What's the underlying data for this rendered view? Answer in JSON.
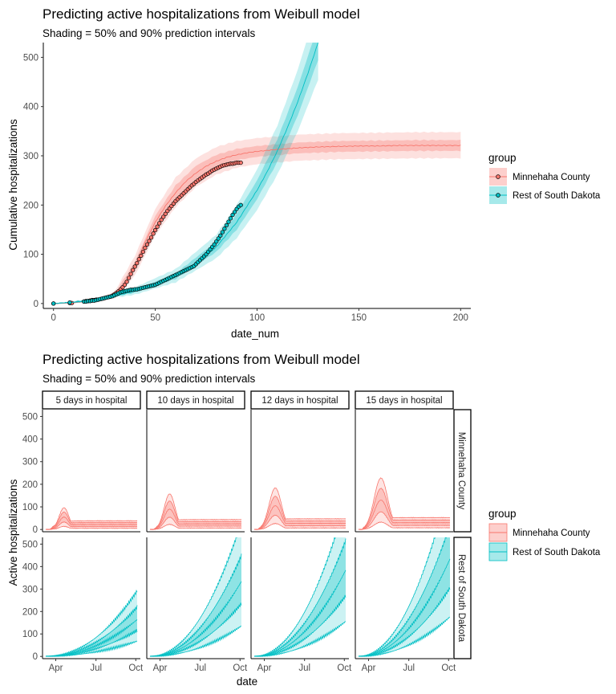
{
  "colors": {
    "minnehaha": "#F8766D",
    "rest": "#00BFC4",
    "minnehaha_fill": "#F8766D",
    "rest_fill": "#00BFC4"
  },
  "chart_data": [
    {
      "type": "line",
      "title": "Predicting active hospitalizations from Weibull model",
      "subtitle": "Shading = 50% and 90% prediction intervals",
      "xlabel": "date_num",
      "ylabel": "Cumulative hospitalizations",
      "xlim": [
        -5,
        205
      ],
      "ylim": [
        -10,
        530
      ],
      "x_ticks": [
        0,
        50,
        100,
        150,
        200
      ],
      "y_ticks": [
        0,
        100,
        200,
        300,
        400,
        500
      ],
      "grid": false,
      "legend": {
        "title": "group",
        "position": "right",
        "entries": [
          "Minnehaha County",
          "Rest of South Dakota"
        ]
      },
      "series": [
        {
          "name": "Minnehaha County",
          "color": "#F8766D",
          "median": {
            "x": [
              0,
              10,
              20,
              25,
              30,
              35,
              40,
              45,
              50,
              55,
              60,
              65,
              70,
              75,
              80,
              85,
              90,
              95,
              100,
              110,
              120,
              130,
              140,
              150,
              160,
              170,
              180,
              190,
              200
            ],
            "y": [
              0,
              2,
              6,
              10,
              17,
              35,
              75,
              125,
              165,
              198,
              225,
              248,
              265,
              279,
              289,
              297,
              302,
              306,
              309,
              313,
              316,
              318,
              319,
              320,
              320,
              321,
              321,
              321,
              321
            ]
          },
          "pi50": {
            "x": [
              0,
              20,
              30,
              40,
              50,
              60,
              70,
              80,
              90,
              100,
              120,
              140,
              160,
              180,
              200
            ],
            "lo": [
              0,
              5,
              14,
              67,
              152,
              212,
              252,
              277,
              291,
              298,
              305,
              308,
              309,
              310,
              310
            ],
            "hi": [
              0,
              7,
              20,
              85,
              178,
              240,
              280,
              302,
              314,
              320,
              327,
              330,
              331,
              332,
              332
            ]
          },
          "pi90": {
            "x": [
              0,
              20,
              30,
              40,
              50,
              60,
              70,
              80,
              90,
              100,
              120,
              140,
              160,
              180,
              200
            ],
            "lo": [
              0,
              4,
              11,
              57,
              138,
              196,
              237,
              262,
              276,
              283,
              290,
              293,
              294,
              295,
              295
            ],
            "hi": [
              0,
              8,
              24,
              97,
              192,
              256,
              295,
              318,
              330,
              336,
              343,
              346,
              347,
              348,
              348
            ]
          },
          "observed": {
            "x": [
              0,
              8,
              9,
              15,
              16,
              17,
              18,
              19,
              20,
              21,
              22,
              23,
              24,
              25,
              26,
              27,
              28,
              29,
              30,
              31,
              32,
              33,
              34,
              35,
              36,
              37,
              38,
              39,
              40,
              41,
              42,
              43,
              44,
              45,
              46,
              47,
              48,
              49,
              50,
              51,
              52,
              53,
              54,
              55,
              56,
              57,
              58,
              59,
              60,
              61,
              62,
              63,
              64,
              65,
              66,
              67,
              68,
              69,
              70,
              71,
              72,
              73,
              74,
              75,
              76,
              77,
              78,
              79,
              80,
              81,
              82,
              83,
              84,
              85,
              86,
              87,
              88,
              89,
              90,
              91,
              92
            ],
            "y": [
              0,
              1,
              1,
              4,
              5,
              5,
              6,
              7,
              7,
              8,
              8,
              9,
              10,
              11,
              12,
              13,
              14,
              16,
              19,
              22,
              25,
              29,
              33,
              38,
              44,
              52,
              60,
              68,
              75,
              82,
              90,
              97,
              105,
              113,
              120,
              127,
              134,
              142,
              149,
              156,
              163,
              170,
              176,
              182,
              188,
              193,
              198,
              203,
              208,
              212,
              216,
              220,
              224,
              228,
              232,
              236,
              240,
              243,
              247,
              250,
              253,
              256,
              259,
              262,
              264,
              267,
              270,
              272,
              274,
              276,
              278,
              280,
              281,
              282,
              283,
              284,
              284,
              285,
              286,
              286,
              286
            ]
          }
        },
        {
          "name": "Rest of South Dakota",
          "color": "#00BFC4",
          "median": {
            "x": [
              0,
              10,
              20,
              30,
              40,
              50,
              60,
              70,
              80,
              90,
              100,
              105,
              110,
              115,
              120,
              125,
              130
            ],
            "y": [
              0,
              3,
              8,
              15,
              25,
              38,
              55,
              80,
              115,
              165,
              230,
              268,
              310,
              358,
              410,
              468,
              530
            ]
          },
          "pi50": {
            "x": [
              0,
              20,
              40,
              60,
              80,
              90,
              100,
              110,
              120,
              130
            ],
            "lo": [
              0,
              7,
              22,
              50,
              105,
              150,
              212,
              288,
              382,
              495
            ],
            "hi": [
              0,
              9,
              28,
              61,
              126,
              182,
              250,
              334,
              440,
              565
            ]
          },
          "pi90": {
            "x": [
              0,
              20,
              40,
              60,
              80,
              90,
              100,
              110,
              120,
              130
            ],
            "lo": [
              0,
              6,
              18,
              43,
              92,
              133,
              190,
              262,
              350,
              455
            ],
            "hi": [
              0,
              10,
              33,
              70,
              140,
              200,
              272,
              362,
              475,
              610
            ]
          },
          "observed": {
            "x": [
              0,
              8,
              15,
              16,
              17,
              18,
              19,
              20,
              21,
              22,
              23,
              24,
              25,
              26,
              27,
              28,
              29,
              30,
              31,
              32,
              33,
              34,
              35,
              36,
              37,
              38,
              39,
              40,
              41,
              42,
              43,
              44,
              45,
              46,
              47,
              48,
              49,
              50,
              51,
              52,
              53,
              54,
              55,
              56,
              57,
              58,
              59,
              60,
              61,
              62,
              63,
              64,
              65,
              66,
              67,
              68,
              69,
              70,
              71,
              72,
              73,
              74,
              75,
              76,
              77,
              78,
              79,
              80,
              81,
              82,
              83,
              84,
              85,
              86,
              87,
              88,
              89,
              90,
              91,
              92
            ],
            "y": [
              0,
              2,
              4,
              4,
              5,
              5,
              6,
              6,
              7,
              8,
              9,
              10,
              11,
              12,
              13,
              14,
              15,
              17,
              19,
              21,
              23,
              24,
              25,
              26,
              27,
              28,
              28,
              29,
              29,
              30,
              31,
              32,
              33,
              34,
              35,
              36,
              37,
              38,
              40,
              42,
              44,
              46,
              48,
              50,
              52,
              54,
              56,
              58,
              60,
              62,
              64,
              66,
              68,
              70,
              72,
              74,
              76,
              80,
              84,
              88,
              92,
              96,
              100,
              105,
              110,
              115,
              120,
              126,
              132,
              138,
              145,
              152,
              159,
              166,
              173,
              180,
              186,
              192,
              197,
              200
            ]
          }
        }
      ]
    },
    {
      "type": "line",
      "title": "Predicting active hospitalizations from Weibull model",
      "subtitle": "Shading = 50% and 90% prediction intervals",
      "xlabel": "date",
      "ylabel": "Active hospitalizations",
      "x_ticks": [
        "Apr",
        "Jul",
        "Oct"
      ],
      "y_ticks": [
        0,
        100,
        200,
        300,
        400,
        500
      ],
      "ylim": [
        -10,
        530
      ],
      "grid": false,
      "legend": {
        "title": "group",
        "position": "right",
        "entries": [
          "Minnehaha County",
          "Rest of South Dakota"
        ]
      },
      "facet_columns": [
        "5 days in hospital",
        "10 days in hospital",
        "12 days in hospital",
        "15 days in hospital"
      ],
      "facet_rows": [
        "Minnehaha County",
        "Rest of South Dakota"
      ],
      "panels": {
        "Minnehaha County": [
          {
            "peak": 55,
            "plateau": 22,
            "p50": [
              14,
              32
            ],
            "p90": [
              5,
              45
            ]
          },
          {
            "peak": 90,
            "plateau": 25,
            "p50": [
              16,
              35
            ],
            "p90": [
              6,
              48
            ]
          },
          {
            "peak": 105,
            "plateau": 27,
            "p50": [
              17,
              37
            ],
            "p90": [
              7,
              50
            ]
          },
          {
            "peak": 130,
            "plateau": 30,
            "p50": [
              19,
              40
            ],
            "p90": [
              8,
              53
            ]
          }
        ],
        "Rest of South Dakota": [
          {
            "end": 160,
            "p50": [
              110,
              205
            ],
            "p90": [
              65,
              375
            ]
          },
          {
            "end": 330,
            "p50": [
              235,
              430
            ],
            "p90": [
              190,
              540
            ]
          },
          {
            "end": 380,
            "p50": [
              270,
              480
            ],
            "p90": [
              230,
              560
            ]
          },
          {
            "end": 430,
            "p50": [
              320,
              520
            ],
            "p90": [
              260,
              580
            ]
          }
        ]
      }
    }
  ]
}
